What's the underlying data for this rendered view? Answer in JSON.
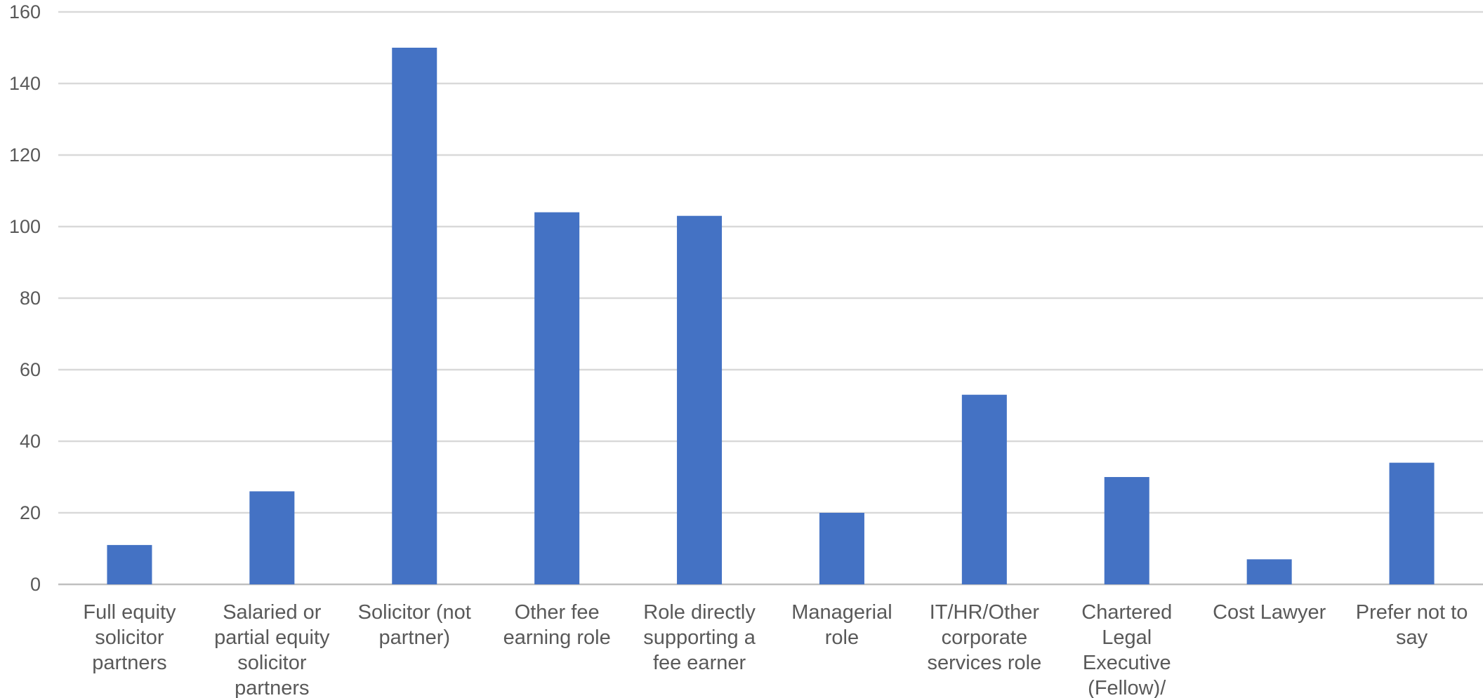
{
  "chart_data": {
    "type": "bar",
    "title": "",
    "xlabel": "",
    "ylabel": "",
    "ylim": [
      0,
      160
    ],
    "yticks": [
      0,
      20,
      40,
      60,
      80,
      100,
      120,
      140,
      160
    ],
    "grid": true,
    "legend": "none",
    "bar_color": "#4472C4",
    "grid_color": "#D9D9D9",
    "label_color": "#595959",
    "categories": [
      [
        "Full equity",
        "solicitor",
        "partners"
      ],
      [
        "Salaried or",
        "partial equity",
        "solicitor",
        "partners"
      ],
      [
        "Solicitor (not",
        "partner)"
      ],
      [
        "Other fee",
        "earning role"
      ],
      [
        "Role directly",
        "supporting a",
        "fee earner"
      ],
      [
        "Managerial",
        "role"
      ],
      [
        "IT/HR/Other",
        "corporate",
        "services role"
      ],
      [
        "Chartered",
        "Legal",
        "Executive",
        "(Fellow)/"
      ],
      [
        "Cost Lawyer"
      ],
      [
        "Prefer not to",
        "say"
      ]
    ],
    "values": [
      11,
      26,
      150,
      104,
      103,
      20,
      53,
      30,
      7,
      34
    ]
  }
}
